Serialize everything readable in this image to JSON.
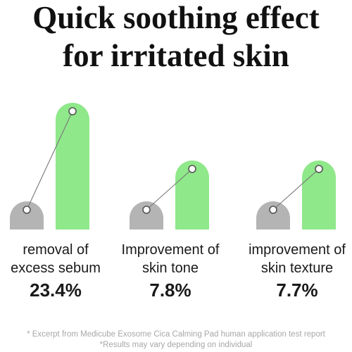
{
  "title_line1": "Quick soothing effect",
  "title_line2": "for irritated skin",
  "chart_data": {
    "type": "bar",
    "categories": [
      [
        "removal of",
        "excess sebum"
      ],
      [
        "Improvement of",
        "skin tone"
      ],
      [
        "improvement of",
        "skin texture"
      ]
    ],
    "value_labels": [
      "23.4%",
      "7.8%",
      "7.7%"
    ],
    "values": [
      23.4,
      7.8,
      7.7
    ],
    "colors": {
      "before": "#b4b4b4",
      "after": "#8fe88a",
      "line": "#777777"
    }
  },
  "footnotes": [
    "* Excerpt from Medicube Exosome Cica Calming Pad human application test report",
    "*Results may vary depending on individual"
  ]
}
